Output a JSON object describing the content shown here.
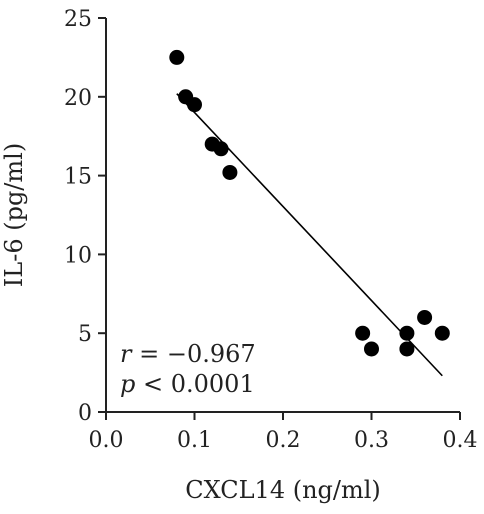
{
  "chart_data": {
    "type": "scatter",
    "title": "",
    "xlabel": "CXCL14 (ng/ml)",
    "ylabel": "IL-6 (pg/ml)",
    "xlim": [
      0.0,
      0.4
    ],
    "ylim": [
      0,
      25
    ],
    "xticks": [
      0.0,
      0.1,
      0.2,
      0.3,
      0.4
    ],
    "xtick_labels": [
      "0.0",
      "0.1",
      "0.2",
      "0.3",
      "0.4"
    ],
    "yticks": [
      0,
      5,
      10,
      15,
      20,
      25
    ],
    "ytick_labels": [
      "0",
      "5",
      "10",
      "15",
      "20",
      "25"
    ],
    "grid": false,
    "points": [
      {
        "x": 0.08,
        "y": 22.5
      },
      {
        "x": 0.09,
        "y": 20.0
      },
      {
        "x": 0.1,
        "y": 19.5
      },
      {
        "x": 0.12,
        "y": 17.0
      },
      {
        "x": 0.13,
        "y": 16.7
      },
      {
        "x": 0.14,
        "y": 15.2
      },
      {
        "x": 0.29,
        "y": 5.0
      },
      {
        "x": 0.3,
        "y": 4.0
      },
      {
        "x": 0.34,
        "y": 5.0
      },
      {
        "x": 0.34,
        "y": 4.0
      },
      {
        "x": 0.36,
        "y": 6.0
      },
      {
        "x": 0.38,
        "y": 5.0
      }
    ],
    "regression_line": {
      "x": [
        0.08,
        0.38
      ],
      "y": [
        20.2,
        2.3
      ]
    },
    "annotations": {
      "r_symbol": "r",
      "r_value": " = −0.967",
      "p_symbol": "p",
      "p_value": " < 0.0001"
    },
    "colors": {
      "points": "#000000",
      "line": "#000000",
      "axis": "#222222"
    }
  }
}
